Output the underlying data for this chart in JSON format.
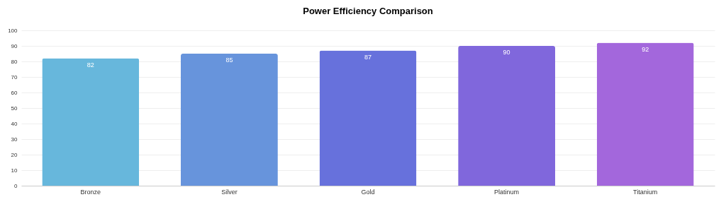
{
  "chart_data": {
    "type": "bar",
    "title": "Power Efficiency Comparison",
    "categories": [
      "Bronze",
      "Silver",
      "Gold",
      "Platinum",
      "Titanium"
    ],
    "values": [
      82,
      85,
      87,
      90,
      92
    ],
    "colors": [
      "#67b7dc",
      "#6794dc",
      "#6771dc",
      "#8067dc",
      "#a367dc"
    ],
    "ylim": [
      0,
      100
    ],
    "yticks": [
      0,
      10,
      20,
      30,
      40,
      50,
      60,
      70,
      80,
      90,
      100
    ],
    "grid": "y",
    "data_labels": true
  }
}
